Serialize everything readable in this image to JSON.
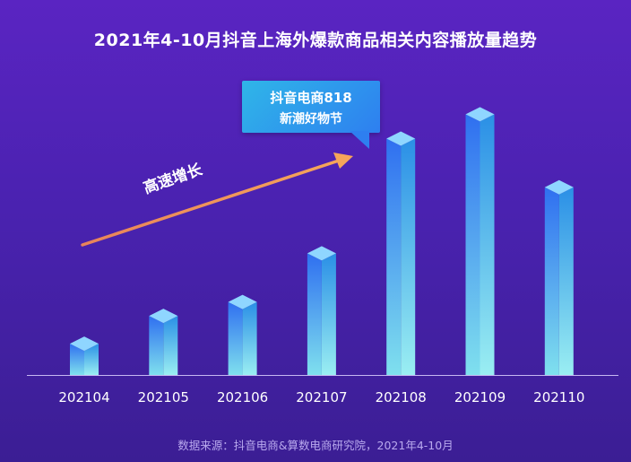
{
  "title": "2021年4-10月抖音上海外爆款商品相关内容播放量趋势",
  "annotation": {
    "callout_line1": "抖音电商818",
    "callout_line2": "新潮好物节",
    "trend_label": "高速增长"
  },
  "source": "数据来源：抖音电商&算数电商研究院，2021年4-10月",
  "colors": {
    "background": "#4a22b0",
    "bar_front_top": "#2f6ff0",
    "bar_front_bottom": "#7fe0ee",
    "bar_top_face": "#8fd6ff",
    "arrow": "#f0915a",
    "callout": "#2e9de8"
  },
  "chart_data": {
    "type": "bar",
    "categories": [
      "202104",
      "202105",
      "202106",
      "202107",
      "202108",
      "202109",
      "202110"
    ],
    "values": [
      9,
      17,
      21,
      35,
      68,
      75,
      54
    ],
    "y_axis_shown": false,
    "ylim": [
      0,
      80
    ]
  }
}
